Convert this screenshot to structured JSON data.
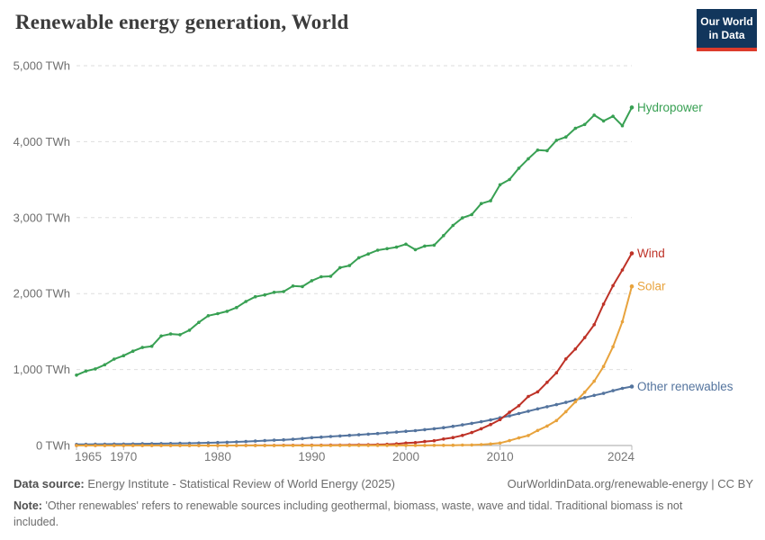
{
  "header": {
    "title": "Renewable energy generation, World",
    "logo_line1": "Our World",
    "logo_line2": "in Data"
  },
  "colors": {
    "logo_bg": "#12365c",
    "logo_bar": "#dc3b2b",
    "hydropower": "#38a053",
    "wind": "#be3227",
    "solar": "#e8a33d",
    "other_renewables": "#54749e",
    "gridline": "#dedede",
    "axis": "#a5a5a5",
    "tick_text": "#6e6e6e"
  },
  "footer": {
    "data_source_label": "Data source:",
    "data_source_text": "Energy Institute - Statistical Review of World Energy (2025)",
    "attribution": "OurWorldinData.org/renewable-energy | CC BY",
    "note_label": "Note:",
    "note_text": "'Other renewables' refers to renewable sources including geothermal, biomass, waste, wave and tidal. Traditional biomass is not included."
  },
  "chart_data": {
    "type": "line",
    "title": "Renewable energy generation, World",
    "unit": "TWh",
    "x_range": [
      1965,
      2024
    ],
    "ylim": [
      0,
      5000
    ],
    "yticks": [
      0,
      1000,
      2000,
      3000,
      4000,
      5000
    ],
    "ytick_labels": [
      "0 TWh",
      "1,000 TWh",
      "2,000 TWh",
      "3,000 TWh",
      "4,000 TWh",
      "5,000 TWh"
    ],
    "xticks": [
      1965,
      1970,
      1980,
      1990,
      2000,
      2010,
      2024
    ],
    "grid": "horizontal-dashed",
    "legend_position": "line-end-labels",
    "years": [
      1965,
      1966,
      1967,
      1968,
      1969,
      1970,
      1971,
      1972,
      1973,
      1974,
      1975,
      1976,
      1977,
      1978,
      1979,
      1980,
      1981,
      1982,
      1983,
      1984,
      1985,
      1986,
      1987,
      1988,
      1989,
      1990,
      1991,
      1992,
      1993,
      1994,
      1995,
      1996,
      1997,
      1998,
      1999,
      2000,
      2001,
      2002,
      2003,
      2004,
      2005,
      2006,
      2007,
      2008,
      2009,
      2010,
      2011,
      2012,
      2013,
      2014,
      2015,
      2016,
      2017,
      2018,
      2019,
      2020,
      2021,
      2022,
      2023,
      2024
    ],
    "series": [
      {
        "name": "Hydropower",
        "color": "#38a053",
        "values": [
          926,
          980,
          1008,
          1063,
          1137,
          1183,
          1242,
          1290,
          1307,
          1442,
          1468,
          1458,
          1518,
          1621,
          1708,
          1736,
          1766,
          1816,
          1896,
          1958,
          1982,
          2016,
          2026,
          2099,
          2093,
          2170,
          2222,
          2227,
          2341,
          2369,
          2472,
          2521,
          2571,
          2591,
          2611,
          2651,
          2578,
          2625,
          2637,
          2763,
          2897,
          2997,
          3040,
          3185,
          3221,
          3433,
          3501,
          3650,
          3775,
          3889,
          3882,
          4018,
          4062,
          4175,
          4226,
          4349,
          4273,
          4334,
          4210,
          4450
        ]
      },
      {
        "name": "Other renewables",
        "color": "#54749e",
        "values": [
          14.7,
          15.6,
          16.2,
          17.3,
          18.4,
          19.5,
          20.6,
          22.5,
          23.7,
          25.1,
          25.8,
          27.9,
          30.2,
          32.5,
          35.2,
          38.7,
          42.5,
          46.9,
          52.1,
          57.6,
          63.9,
          69.5,
          75,
          81.3,
          91.4,
          103.5,
          110.6,
          118,
          125.4,
          133.6,
          141.1,
          149,
          157.7,
          166.6,
          176.5,
          186.9,
          195.8,
          208,
          219.8,
          234.8,
          252.7,
          271.3,
          291.1,
          312.3,
          336.6,
          365.2,
          390.1,
          420.2,
          451.4,
          482.7,
          510.5,
          538,
          567.7,
          600.3,
          630.4,
          660.1,
          686,
          721.5,
          752.9,
          776
        ]
      },
      {
        "name": "Wind",
        "color": "#be3227",
        "values": [
          0,
          0,
          0,
          0,
          0,
          0,
          0,
          0,
          0,
          0,
          0,
          0,
          0,
          0,
          0,
          0.1,
          0.1,
          0.3,
          0.6,
          1,
          1.2,
          1.5,
          1.9,
          2.4,
          3.1,
          3.9,
          4.1,
          4.7,
          5.8,
          7,
          8.3,
          9.4,
          12,
          15.9,
          21.2,
          31.4,
          38.4,
          52.3,
          62.9,
          85.1,
          104.1,
          132.9,
          170.7,
          220.6,
          275.9,
          341.6,
          436.8,
          523.3,
          645.7,
          706.2,
          831.8,
          957.5,
          1140.1,
          1269.9,
          1420.9,
          1590.2,
          1861.9,
          2104.8,
          2310.6,
          2530
        ]
      },
      {
        "name": "Solar",
        "color": "#e8a33d",
        "values": [
          0,
          0,
          0,
          0,
          0,
          0,
          0,
          0,
          0,
          0,
          0,
          0,
          0,
          0,
          0,
          0,
          0,
          0,
          0,
          0,
          0,
          0,
          0,
          0,
          0,
          0.4,
          0.5,
          0.5,
          0.6,
          0.6,
          0.7,
          0.7,
          0.8,
          0.8,
          0.9,
          1.1,
          1.4,
          1.7,
          2.1,
          2.8,
          4,
          5.4,
          7.3,
          11.9,
          19.9,
          32.2,
          63.6,
          99.5,
          132,
          197.7,
          256.1,
          328.2,
          445.2,
          574.2,
          701.4,
          845.6,
          1040.6,
          1300.1,
          1628.9,
          2095
        ]
      }
    ]
  }
}
